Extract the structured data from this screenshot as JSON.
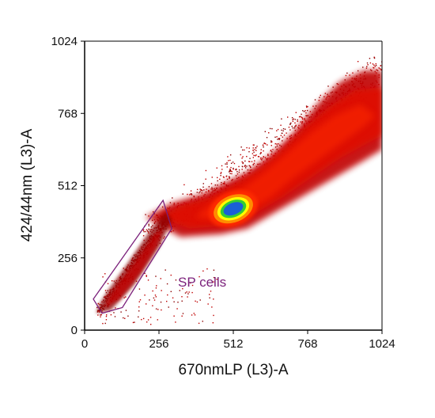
{
  "chart_data": {
    "type": "scatter",
    "subtype": "flow-cytometry-density-dot-plot",
    "xlabel": "670nmLP (L3)-A",
    "ylabel": "424/44nm (L3)-A",
    "xlim": [
      0,
      1024
    ],
    "ylim": [
      0,
      1024
    ],
    "xticks": [
      0,
      256,
      512,
      768,
      1024
    ],
    "xtick_labels": [
      "0",
      "256",
      "512",
      "768",
      "1024"
    ],
    "yticks": [
      0,
      256,
      512,
      768,
      1024
    ],
    "ytick_labels": [
      "0",
      "256",
      "512",
      "768",
      "1024"
    ],
    "grid": false,
    "density_colors": [
      "#8b0000",
      "#c00000",
      "#e01000",
      "#ff2a00",
      "#ff8c00",
      "#ffff00",
      "#33cc33",
      "#1a5fd6"
    ],
    "populations": [
      {
        "name": "main diagonal population",
        "x_range": [
          200,
          1024
        ],
        "y_range": [
          300,
          920
        ],
        "peak": [
          512,
          430
        ]
      },
      {
        "name": "side population",
        "x_range": [
          30,
          300
        ],
        "y_range": [
          40,
          420
        ]
      }
    ],
    "gate": {
      "label": "SP cells",
      "color": "#7a1f7a",
      "vertices": [
        [
          30,
          110
        ],
        [
          270,
          460
        ],
        [
          300,
          360
        ],
        [
          130,
          80
        ],
        [
          60,
          60
        ]
      ]
    }
  }
}
